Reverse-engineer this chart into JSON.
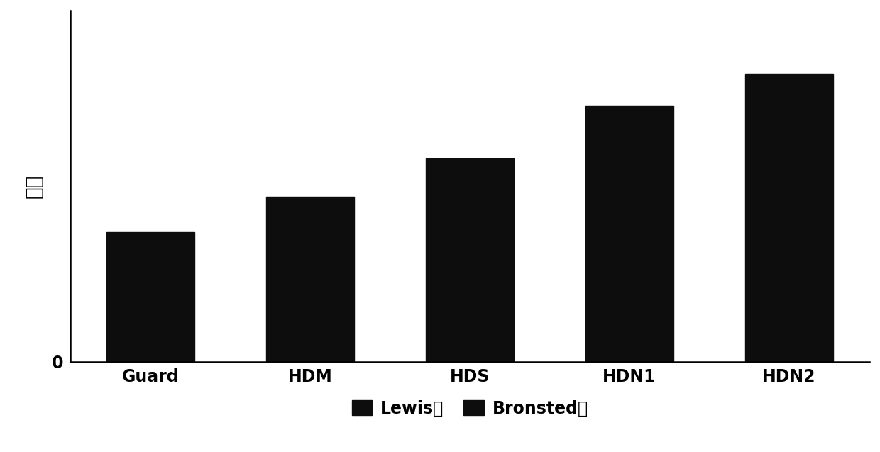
{
  "categories": [
    "Guard",
    "HDM",
    "HDS",
    "HDN1",
    "HDN2"
  ],
  "values": [
    3.7,
    4.7,
    5.8,
    7.3,
    8.2
  ],
  "bar_color": "#0d0d0d",
  "bar_width": 0.55,
  "ylabel": "酸量",
  "ylabel_fontsize": 20,
  "tick_fontsize": 17,
  "legend_labels": [
    "Lewis酸",
    "Bronsted酸"
  ],
  "legend_fontsize": 17,
  "ylim": [
    0,
    10.0
  ],
  "background_color": "#ffffff",
  "spine_color": "#000000",
  "fig_width": 12.4,
  "fig_height": 6.37,
  "dpi": 100
}
